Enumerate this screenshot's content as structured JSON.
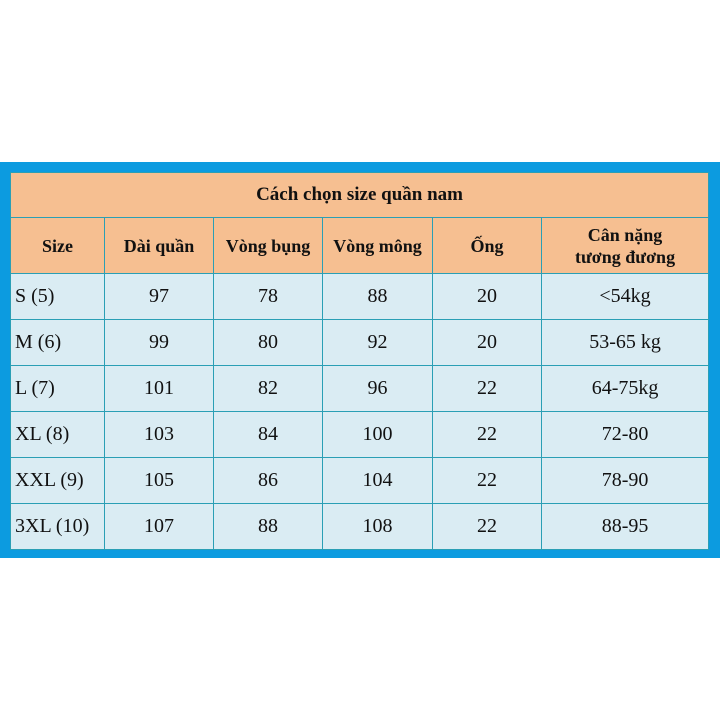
{
  "title": "Cách chọn size quần nam",
  "columns": [
    "Size",
    "Dài quần",
    "Vòng bụng",
    "Vòng mông",
    "Ống",
    "Cân nặng tương đương"
  ],
  "column_weight_lines": [
    "Cân nặng",
    "tương đương"
  ],
  "rows": [
    [
      "S (5)",
      "97",
      "78",
      "88",
      "20",
      "<54kg"
    ],
    [
      "M (6)",
      "99",
      "80",
      "92",
      "20",
      "53-65 kg"
    ],
    [
      "L (7)",
      "101",
      "82",
      "96",
      "22",
      "64-75kg"
    ],
    [
      "XL (8)",
      "103",
      "84",
      "100",
      "22",
      "72-80"
    ],
    [
      "XXL (9)",
      "105",
      "86",
      "104",
      "22",
      "78-90"
    ],
    [
      "3XL (10)",
      "107",
      "88",
      "108",
      "22",
      "88-95"
    ]
  ],
  "colors": {
    "frame": "#0c9be0",
    "header": "#f6bf91",
    "row": "#daecf3",
    "grid": "#2a9fb5"
  }
}
